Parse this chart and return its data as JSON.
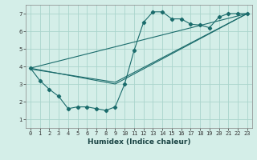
{
  "xlabel": "Humidex (Indice chaleur)",
  "bg_color": "#d4eee8",
  "grid_color": "#aad4cc",
  "line_color": "#1a6b6b",
  "xlim": [
    -0.5,
    23.5
  ],
  "ylim": [
    0.5,
    7.5
  ],
  "xticks": [
    0,
    1,
    2,
    3,
    4,
    5,
    6,
    7,
    8,
    9,
    10,
    11,
    12,
    13,
    14,
    15,
    16,
    17,
    18,
    19,
    20,
    21,
    22,
    23
  ],
  "yticks": [
    1,
    2,
    3,
    4,
    5,
    6,
    7
  ],
  "line1_x": [
    0,
    1,
    2,
    3,
    4,
    5,
    6,
    7,
    8,
    9,
    10,
    11,
    12,
    13,
    14,
    15,
    16,
    17,
    18,
    19,
    20,
    21,
    22,
    23
  ],
  "line1_y": [
    3.9,
    3.2,
    2.7,
    2.3,
    1.6,
    1.7,
    1.7,
    1.6,
    1.5,
    1.7,
    3.0,
    4.9,
    6.5,
    7.1,
    7.1,
    6.7,
    6.7,
    6.4,
    6.35,
    6.2,
    6.8,
    7.0,
    7.0,
    7.0
  ],
  "line2_x": [
    0,
    9,
    23
  ],
  "line2_y": [
    3.9,
    3.0,
    7.0
  ],
  "line3_x": [
    0,
    23
  ],
  "line3_y": [
    3.9,
    7.0
  ],
  "line4_x": [
    0,
    9,
    23
  ],
  "line4_y": [
    3.85,
    3.1,
    7.0
  ]
}
